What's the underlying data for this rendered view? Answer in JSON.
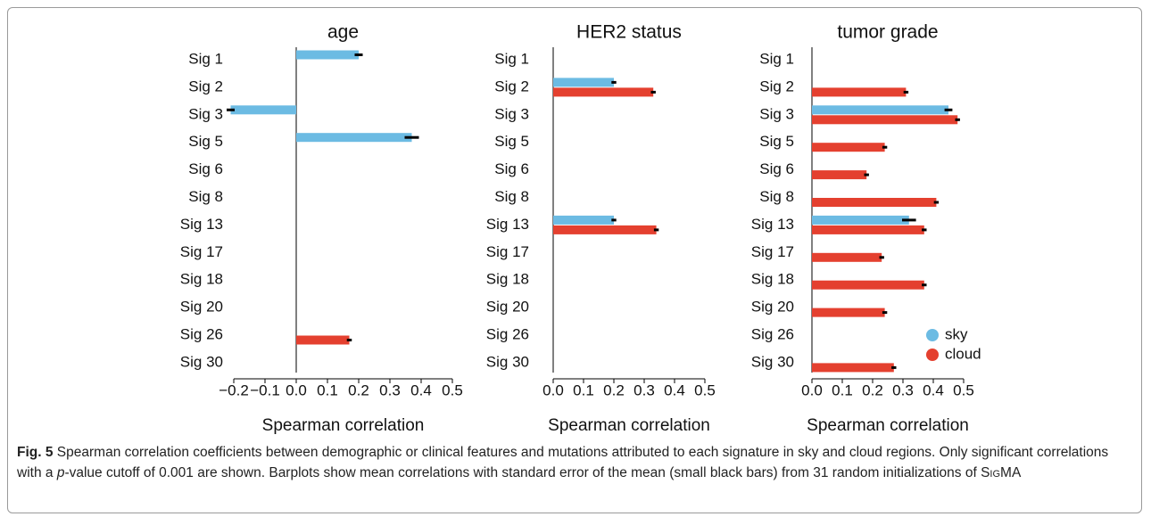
{
  "chart_data": [
    {
      "type": "barh",
      "title": "age",
      "xlabel": "Spearman correlation",
      "categories": [
        "Sig 1",
        "Sig 2",
        "Sig 3",
        "Sig 5",
        "Sig 6",
        "Sig 8",
        "Sig 13",
        "Sig 17",
        "Sig 18",
        "Sig 20",
        "Sig 26",
        "Sig 30"
      ],
      "series": [
        {
          "color": "#6cbbe3",
          "values": [
            0.2,
            null,
            -0.21,
            0.37,
            null,
            null,
            null,
            null,
            null,
            null,
            null,
            null
          ],
          "errors": [
            0.01,
            null,
            0.01,
            0.02,
            null,
            null,
            null,
            null,
            null,
            null,
            null,
            null
          ]
        },
        {
          "color": "#e4402f",
          "values": [
            null,
            null,
            null,
            null,
            null,
            null,
            null,
            null,
            null,
            null,
            0.17,
            null
          ],
          "errors": [
            null,
            null,
            null,
            null,
            null,
            null,
            null,
            null,
            null,
            null,
            0.005,
            null
          ]
        }
      ],
      "xlim": [
        -0.2,
        0.5
      ],
      "xticks": [
        {
          "value": -0.2,
          "label": "−0.2"
        },
        {
          "value": -0.1,
          "label": "−0.1"
        },
        {
          "value": 0,
          "label": "0.0"
        },
        0.1,
        0.2,
        0.3,
        0.4,
        0.5
      ]
    },
    {
      "type": "barh",
      "title": "HER2 status",
      "xlabel": "Spearman correlation",
      "categories": [
        "Sig 1",
        "Sig 2",
        "Sig 3",
        "Sig 5",
        "Sig 6",
        "Sig 8",
        "Sig 13",
        "Sig 17",
        "Sig 18",
        "Sig 20",
        "Sig 26",
        "Sig 30"
      ],
      "series": [
        {
          "color": "#6cbbe3",
          "values": [
            null,
            0.2,
            null,
            null,
            null,
            null,
            0.2,
            null,
            null,
            null,
            null,
            null
          ],
          "errors": [
            null,
            0.005,
            null,
            null,
            null,
            null,
            0.005,
            null,
            null,
            null,
            null,
            null
          ]
        },
        {
          "color": "#e4402f",
          "values": [
            null,
            0.33,
            null,
            null,
            null,
            null,
            0.34,
            null,
            null,
            null,
            null,
            null
          ],
          "errors": [
            null,
            0.005,
            null,
            null,
            null,
            null,
            0.005,
            null,
            null,
            null,
            null,
            null
          ]
        }
      ],
      "xlim": [
        0,
        0.5
      ],
      "xticks": [
        {
          "value": 0,
          "label": "0.0"
        },
        0.1,
        0.2,
        0.3,
        0.4,
        0.5
      ]
    },
    {
      "type": "barh",
      "title": "tumor grade",
      "xlabel": "Spearman correlation",
      "categories": [
        "Sig 1",
        "Sig 2",
        "Sig 3",
        "Sig 5",
        "Sig 6",
        "Sig 8",
        "Sig 13",
        "Sig 17",
        "Sig 18",
        "Sig 20",
        "Sig 26",
        "Sig 30"
      ],
      "series": [
        {
          "name": "sky",
          "color": "#6cbbe3",
          "values": [
            null,
            null,
            0.45,
            null,
            null,
            null,
            0.32,
            null,
            null,
            null,
            null,
            null
          ],
          "errors": [
            null,
            null,
            0.01,
            null,
            null,
            null,
            0.02,
            null,
            null,
            null,
            null,
            null
          ]
        },
        {
          "name": "cloud",
          "color": "#e4402f",
          "values": [
            null,
            0.31,
            0.48,
            0.24,
            0.18,
            0.41,
            0.37,
            0.23,
            0.37,
            0.24,
            null,
            0.27
          ],
          "errors": [
            null,
            0.005,
            0.005,
            0.005,
            0.005,
            0.005,
            0.005,
            0.005,
            0.005,
            0.005,
            null,
            0.005
          ]
        }
      ],
      "xlim": [
        0,
        0.5
      ],
      "xticks": [
        {
          "value": 0,
          "label": "0.0"
        },
        0.1,
        0.2,
        0.3,
        0.4,
        0.5
      ],
      "legend": "lower right"
    }
  ],
  "caption": {
    "label": "Fig. 5",
    "parts": [
      "Spearman correlation coefficients between demographic or clinical features and mutations attributed to each signature in sky and cloud regions. Only significant correlations with a ",
      "p",
      "-value cutoff of 0.001 are shown. Barplots show mean correlations with standard error of the mean (small black bars) from 31 random initializations of ",
      "SigMA"
    ]
  }
}
